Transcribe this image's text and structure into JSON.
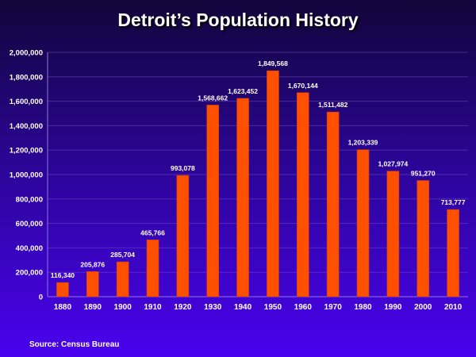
{
  "chart_data": {
    "type": "bar",
    "title": "Detroit’s Population History",
    "xlabel": "",
    "ylabel": "",
    "categories": [
      "1880",
      "1890",
      "1900",
      "1910",
      "1920",
      "1930",
      "1940",
      "1950",
      "1960",
      "1970",
      "1980",
      "1990",
      "2000",
      "2010"
    ],
    "values": [
      116340,
      205876,
      285704,
      465766,
      993078,
      1568662,
      1623452,
      1849568,
      1670144,
      1511482,
      1203339,
      1027974,
      951270,
      713777
    ],
    "data_labels": [
      "116,340",
      "205,876",
      "285,704",
      "465,766",
      "993,078",
      "1,568,662",
      "1,623,452",
      "1,849,568",
      "1,670,144",
      "1,511,482",
      "1,203,339",
      "1,027,974",
      "951,270",
      "713,777"
    ],
    "ylim": [
      0,
      2000000
    ],
    "yticks": [
      0,
      200000,
      400000,
      600000,
      800000,
      1000000,
      1200000,
      1400000,
      1600000,
      1800000,
      2000000
    ],
    "ytick_labels": [
      "0",
      "200,000",
      "400,000",
      "600,000",
      "800,000",
      "1,000,000",
      "1,200,000",
      "1,400,000",
      "1,600,000",
      "1,800,000",
      "2,000,000"
    ],
    "grid": true,
    "bar_color": "#ff5000",
    "source": "Source:  Census Bureau"
  }
}
